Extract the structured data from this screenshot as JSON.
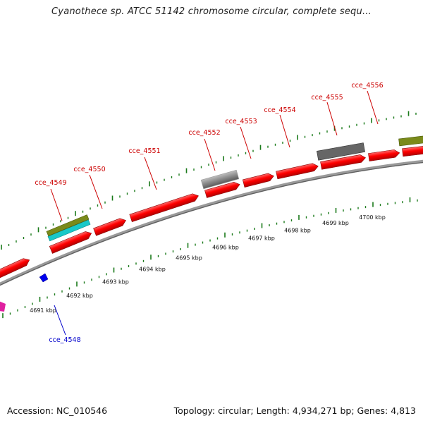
{
  "title": "Cyanothece sp. ATCC 51142 chromosome circular, complete sequ...",
  "footer": {
    "accession": "Accession: NC_010546",
    "topology": "Topology: circular; Length: 4,934,271 bp; Genes: 4,813"
  },
  "genes": [
    {
      "name": "cce_4548",
      "color": "#0000cc"
    },
    {
      "name": "cce_4549",
      "color": "#cc0000"
    },
    {
      "name": "cce_4550",
      "color": "#cc0000"
    },
    {
      "name": "cce_4551",
      "color": "#cc0000"
    },
    {
      "name": "cce_4552",
      "color": "#cc0000"
    },
    {
      "name": "cce_4553",
      "color": "#cc0000"
    },
    {
      "name": "cce_4554",
      "color": "#cc0000"
    },
    {
      "name": "cce_4555",
      "color": "#cc0000"
    },
    {
      "name": "cce_4556",
      "color": "#cc0000"
    }
  ],
  "kbp_ticks": [
    "4691 kbp",
    "4692 kbp",
    "4693 kbp",
    "4694 kbp",
    "4695 kbp",
    "4696 kbp",
    "4697 kbp",
    "4698 kbp",
    "4699 kbp",
    "4700 kbp"
  ],
  "feature_colors": {
    "cds": "#ff0000",
    "olive": "#7a8a1a",
    "cyan": "#19c8c8",
    "light_gray": "#c8c8c8",
    "dark_gray": "#666666",
    "blue": "#0000ee",
    "magenta": "#e020a0",
    "tick_green": "#1a7a1a",
    "backbone": "#8a8a8a"
  }
}
